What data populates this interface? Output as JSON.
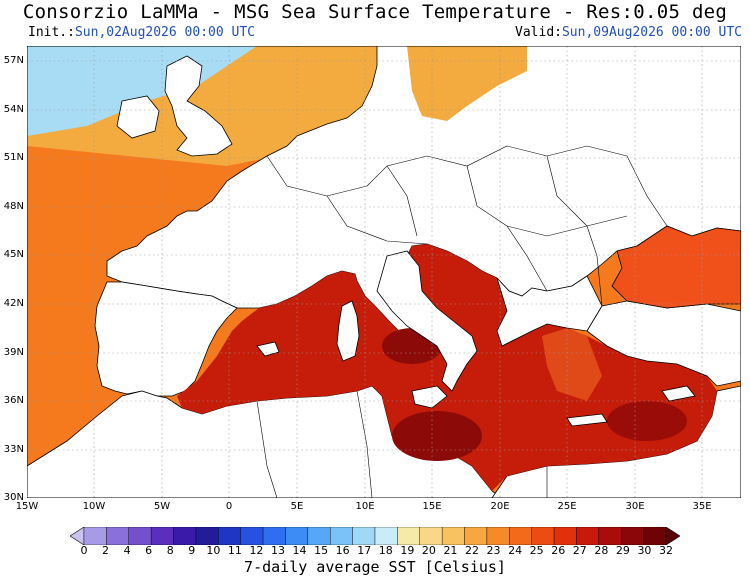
{
  "header": {
    "title": "Consorzio LaMMa - MSG Sea Surface Temperature - Res:0.05 deg",
    "init_label": "Init.:",
    "init_value": "Sun,02Aug2026 00:00 UTC",
    "valid_label": "Valid:",
    "valid_value": "Sun,09Aug2026 00:00 UTC"
  },
  "axes": {
    "lat_labels": [
      "57N",
      "54N",
      "51N",
      "48N",
      "45N",
      "42N",
      "39N",
      "36N",
      "33N",
      "30N"
    ],
    "lon_labels": [
      "15W",
      "10W",
      "5W",
      "0",
      "5E",
      "10E",
      "15E",
      "20E",
      "25E",
      "30E",
      "35E"
    ]
  },
  "colorbar": {
    "tick_labels": [
      "0",
      "2",
      "4",
      "6",
      "8",
      "9",
      "10",
      "11",
      "12",
      "13",
      "14",
      "15",
      "16",
      "17",
      "18",
      "19",
      "20",
      "21",
      "22",
      "23",
      "24",
      "25",
      "26",
      "27",
      "28",
      "29",
      "30",
      "32"
    ],
    "colors": [
      "#c9c3f0",
      "#a89be6",
      "#8a70da",
      "#7450cc",
      "#5a2fbe",
      "#3a1aa8",
      "#221c9a",
      "#1f35c4",
      "#2552e0",
      "#2f6ef0",
      "#3d8cf5",
      "#56a8f6",
      "#7ac2f7",
      "#a0d8f8",
      "#c8ecf8",
      "#f6eaa8",
      "#f8d888",
      "#f8c260",
      "#f7a640",
      "#f58a28",
      "#f26a1a",
      "#ec4c12",
      "#e0300c",
      "#c81a0a",
      "#a90c0a",
      "#8a0608",
      "#6e0306",
      "#5a0205"
    ],
    "label": "7-daily average SST [Celsius]"
  },
  "map_colors": {
    "land": "#ffffff",
    "border": "#000000",
    "grid": "#9a9a9a",
    "sea_atlantic": "#f57a1e",
    "sea_north": "#f3aa3e",
    "sea_cold": "#a8dcf5",
    "sea_med": "#c61c0a",
    "sea_med_dark": "#8c0a08",
    "sea_black": "#f0501a"
  }
}
